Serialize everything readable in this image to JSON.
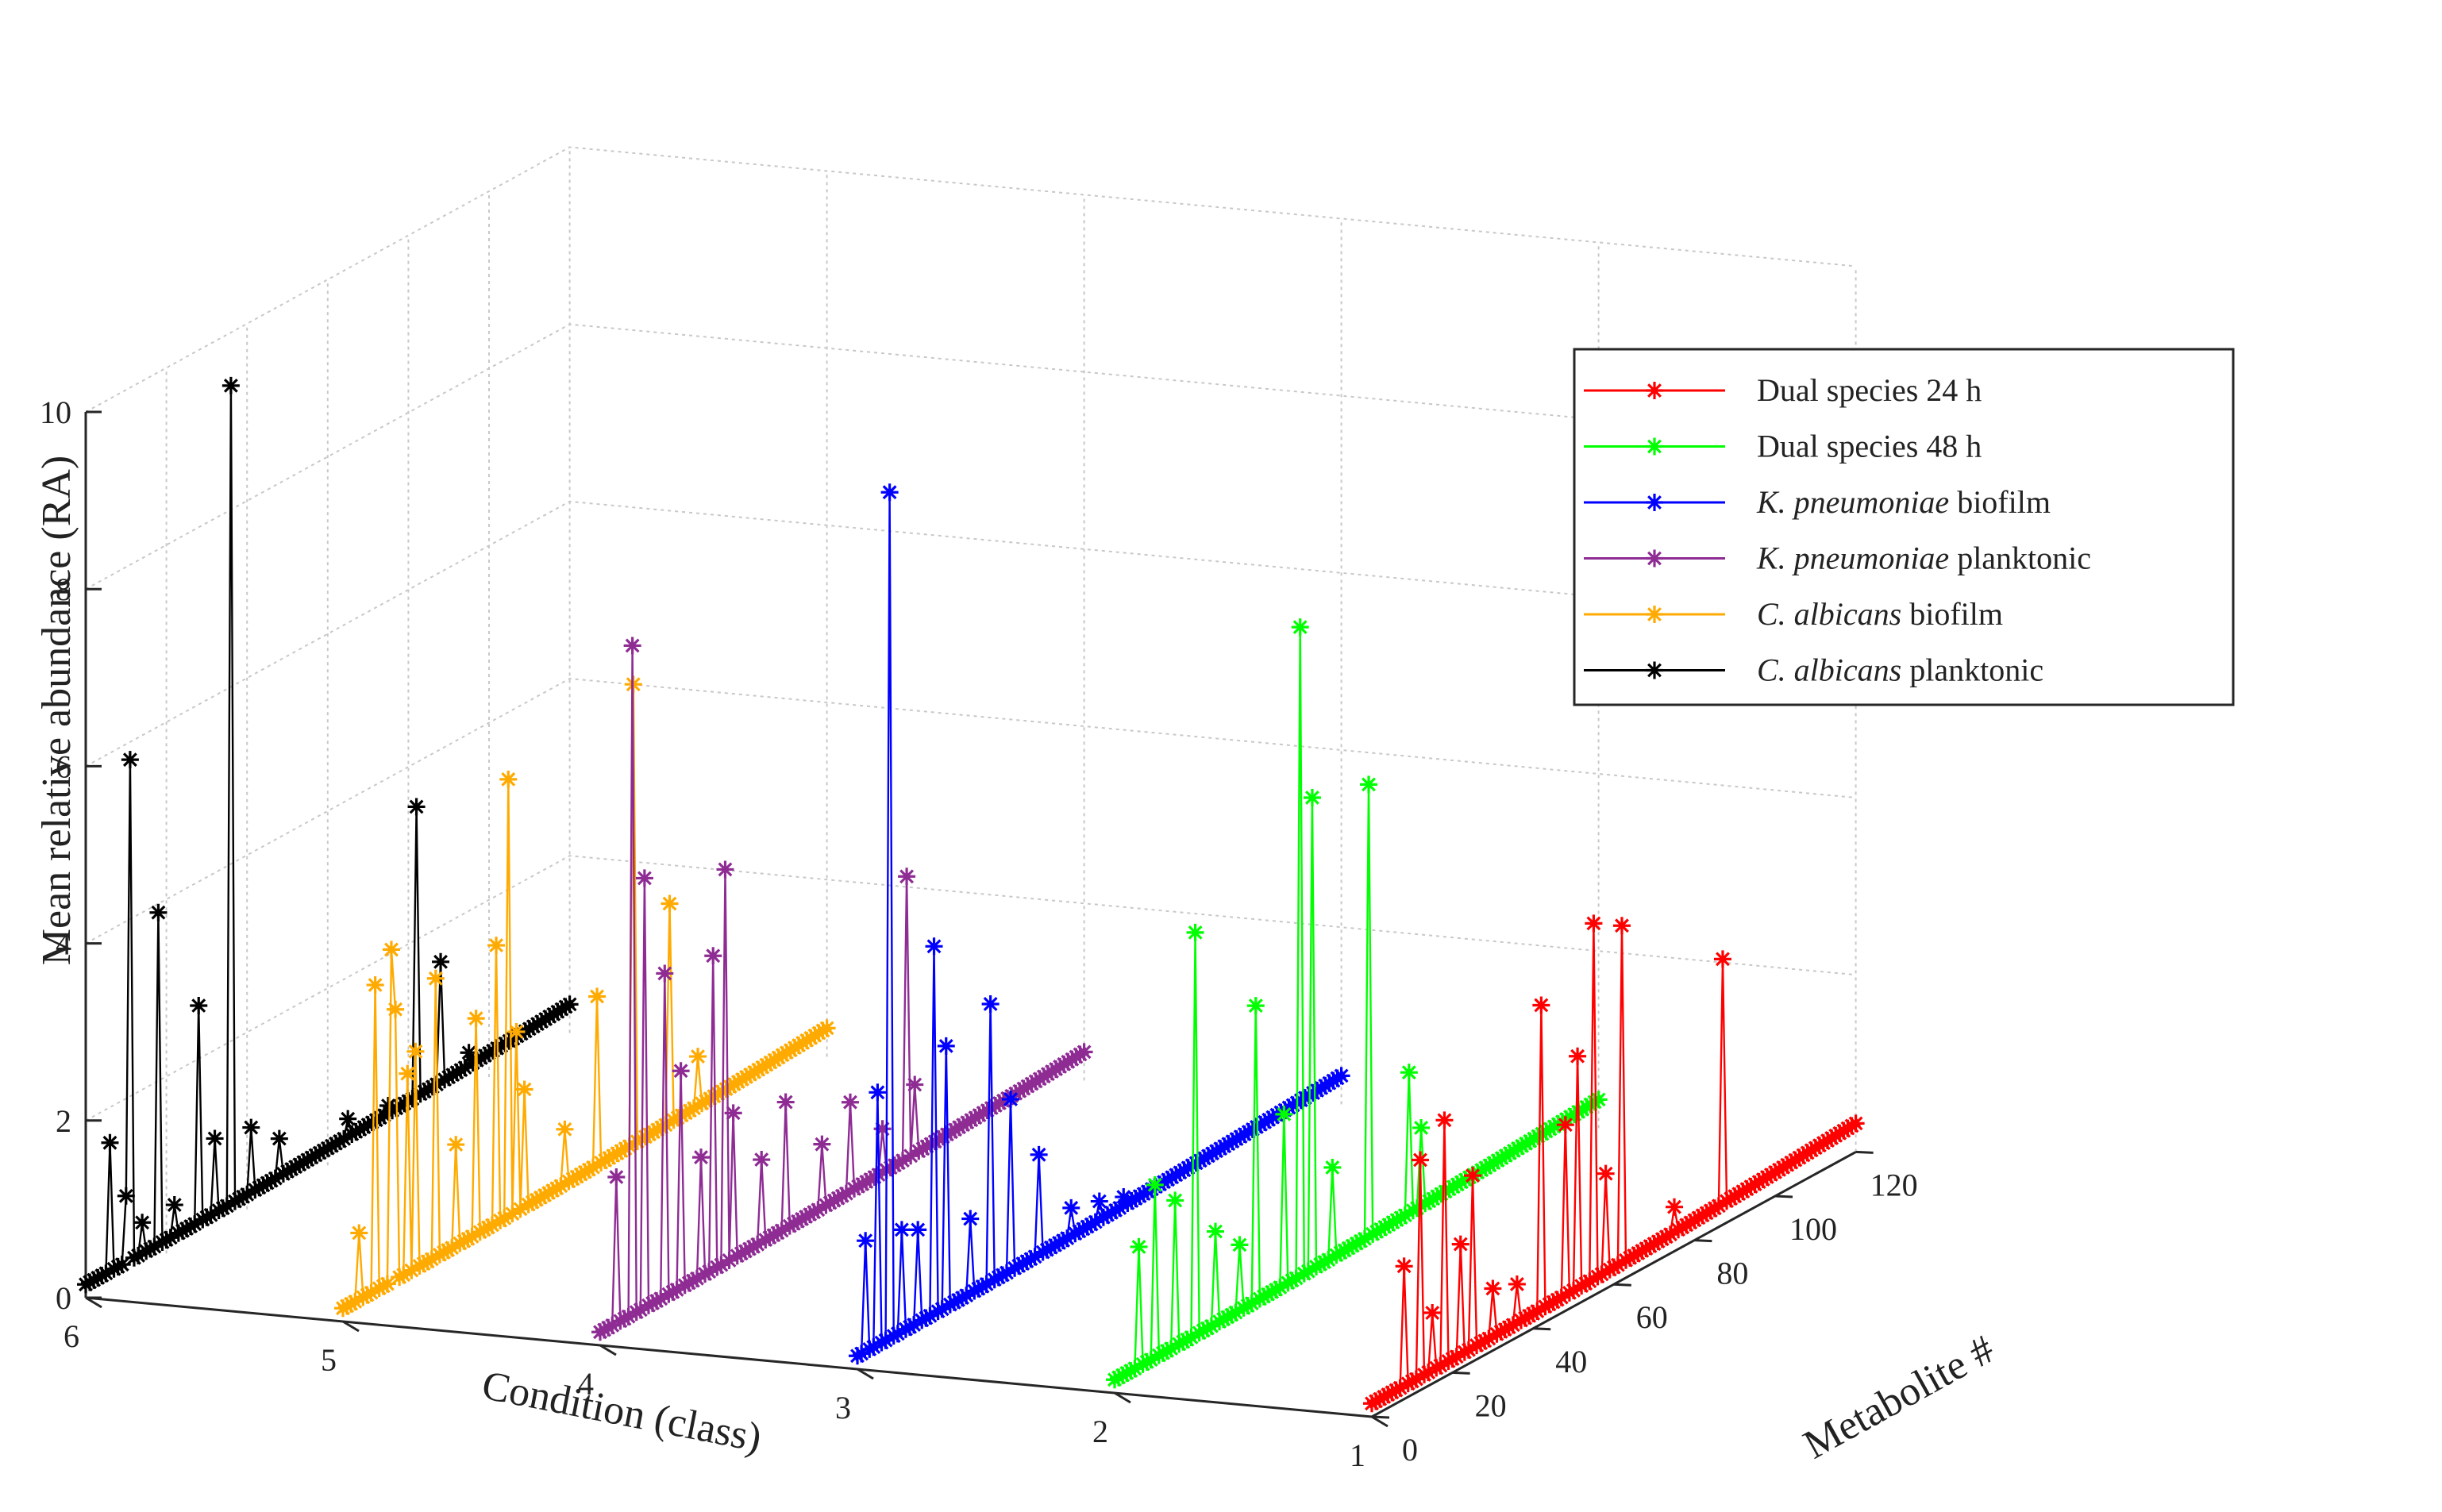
{
  "chart_data": {
    "type": "line",
    "subtype": "3d-waterfall",
    "title": "",
    "xlabel": "Metabolite #",
    "ylabel": "Condition (class)",
    "zlabel": "Mean relative abundance (RA)",
    "xlim": [
      0,
      120
    ],
    "ylim": [
      1,
      6
    ],
    "zlim": [
      0,
      10
    ],
    "x_ticks": [
      "0",
      "20",
      "40",
      "60",
      "80",
      "100",
      "120"
    ],
    "y_ticks": [
      "1",
      "2",
      "3",
      "4",
      "5",
      "6"
    ],
    "z_ticks": [
      "0",
      "2",
      "4",
      "6",
      "8",
      "10"
    ],
    "marker": "asterisk",
    "legend_position": "top-right",
    "series": [
      {
        "name": "Dual species 24 h",
        "legend_parts": [
          {
            "text": "Dual species 24 h",
            "italic": false
          }
        ],
        "color": "#ff0000",
        "condition": 1,
        "spikes": [
          [
            8,
            1.5
          ],
          [
            12,
            2.6
          ],
          [
            15,
            0.8
          ],
          [
            18,
            2.9
          ],
          [
            22,
            1.4
          ],
          [
            25,
            2.1
          ],
          [
            30,
            0.7
          ],
          [
            36,
            0.6
          ],
          [
            42,
            3.6
          ],
          [
            48,
            2.1
          ],
          [
            51,
            2.8
          ],
          [
            55,
            4.2
          ],
          [
            58,
            1.3
          ],
          [
            62,
            4.0
          ],
          [
            75,
            0.5
          ],
          [
            87,
            3.0
          ]
        ]
      },
      {
        "name": "Dual species 48 h",
        "legend_parts": [
          {
            "text": "Dual species 48 h",
            "italic": false
          }
        ],
        "color": "#00ff00",
        "condition": 2,
        "spikes": [
          [
            6,
            1.5
          ],
          [
            10,
            2.1
          ],
          [
            15,
            1.8
          ],
          [
            20,
            4.7
          ],
          [
            25,
            1.2
          ],
          [
            31,
            0.9
          ],
          [
            35,
            3.5
          ],
          [
            42,
            2.1
          ],
          [
            46,
            7.5
          ],
          [
            49,
            5.5
          ],
          [
            54,
            1.2
          ],
          [
            63,
            5.3
          ],
          [
            73,
            1.8
          ],
          [
            76,
            1.1
          ]
        ]
      },
      {
        "name": "K. pneumoniae biofilm",
        "legend_parts": [
          {
            "text": "K. pneumoniae",
            "italic": true
          },
          {
            "text": " biofilm",
            "italic": false
          }
        ],
        "color": "#0000ff",
        "condition": 3,
        "spikes": [
          [
            2,
            1.4
          ],
          [
            5,
            3.0
          ],
          [
            8,
            9.7
          ],
          [
            11,
            1.3
          ],
          [
            15,
            1.2
          ],
          [
            19,
            4.3
          ],
          [
            22,
            3.1
          ],
          [
            28,
            1.0
          ],
          [
            33,
            3.3
          ],
          [
            38,
            2.1
          ],
          [
            45,
            1.3
          ],
          [
            53,
            0.5
          ],
          [
            60,
            0.4
          ],
          [
            66,
            0.3
          ]
        ]
      },
      {
        "name": "K. pneumoniae planktonic",
        "legend_parts": [
          {
            "text": "K. pneumoniae",
            "italic": true
          },
          {
            "text": " planktonic",
            "italic": false
          }
        ],
        "color": "#8e2c94",
        "condition": 4,
        "spikes": [
          [
            4,
            1.8
          ],
          [
            8,
            7.7
          ],
          [
            11,
            5.0
          ],
          [
            16,
            3.8
          ],
          [
            20,
            2.6
          ],
          [
            25,
            1.5
          ],
          [
            28,
            3.7
          ],
          [
            31,
            4.6
          ],
          [
            33,
            1.8
          ],
          [
            40,
            1.1
          ],
          [
            46,
            1.6
          ],
          [
            55,
            0.9
          ],
          [
            62,
            1.2
          ],
          [
            70,
            0.7
          ],
          [
            76,
            3.4
          ],
          [
            78,
            1.0
          ]
        ]
      },
      {
        "name": "C. albicans biofilm",
        "legend_parts": [
          {
            "text": "C. albicans",
            "italic": true
          },
          {
            "text": " biofilm",
            "italic": false
          }
        ],
        "color": "#ffaa00",
        "condition": 5,
        "spikes": [
          [
            4,
            0.9
          ],
          [
            8,
            3.6
          ],
          [
            12,
            3.9
          ],
          [
            13,
            3.2
          ],
          [
            16,
            2.4
          ],
          [
            18,
            2.6
          ],
          [
            23,
            3.3
          ],
          [
            28,
            1.3
          ],
          [
            33,
            2.6
          ],
          [
            38,
            3.3
          ],
          [
            41,
            5.1
          ],
          [
            43,
            2.2
          ],
          [
            45,
            1.5
          ],
          [
            55,
            0.8
          ],
          [
            63,
            2.1
          ],
          [
            72,
            5.4
          ],
          [
            81,
            2.7
          ],
          [
            88,
            0.8
          ]
        ]
      },
      {
        "name": "C. albicans planktonic",
        "legend_parts": [
          {
            "text": "C. albicans",
            "italic": true
          },
          {
            "text": " planktonic",
            "italic": false
          }
        ],
        "color": "#000000",
        "condition": 6,
        "spikes": [
          [
            6,
            1.6
          ],
          [
            10,
            0.9
          ],
          [
            11,
            5.8
          ],
          [
            14,
            0.5
          ],
          [
            18,
            3.9
          ],
          [
            22,
            0.5
          ],
          [
            28,
            2.6
          ],
          [
            32,
            1.0
          ],
          [
            36,
            9.4
          ],
          [
            41,
            0.9
          ],
          [
            48,
            0.6
          ],
          [
            65,
            0.4
          ],
          [
            75,
            0.3
          ],
          [
            82,
            3.5
          ],
          [
            88,
            1.6
          ],
          [
            95,
            0.4
          ]
        ]
      }
    ]
  }
}
